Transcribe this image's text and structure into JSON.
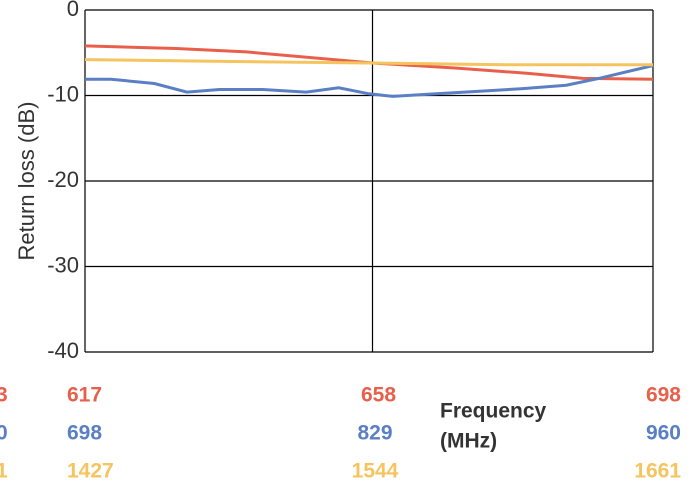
{
  "chart_data": {
    "type": "line",
    "ylabel": "Return loss (dB)",
    "xlabel": [
      "Frequency",
      "(MHz)"
    ],
    "ylim": [
      -40,
      0
    ],
    "yticks": [
      0,
      -10,
      -20,
      -30,
      -40
    ],
    "grid": true,
    "cut_labels": [
      "3",
      "0",
      "1"
    ],
    "x_axes": [
      {
        "color": "#e8604c",
        "xlim": [
          617,
          698
        ],
        "xticks": [
          617,
          658,
          698
        ]
      },
      {
        "color": "#5b7fc4",
        "xlim": [
          698,
          960
        ],
        "xticks": [
          698,
          829,
          960
        ]
      },
      {
        "color": "#f5c45e",
        "xlim": [
          1427,
          1661
        ],
        "xticks": [
          1427,
          1544,
          1661
        ]
      }
    ],
    "series": [
      {
        "color": "#e8604c",
        "axis": 0,
        "x": [
          617,
          630,
          640,
          658,
          670,
          680,
          688,
          698
        ],
        "values": [
          -4.2,
          -4.5,
          -4.9,
          -6.2,
          -6.8,
          -7.4,
          -8.0,
          -8.1
        ]
      },
      {
        "color": "#5b7fc4",
        "axis": 1,
        "x": [
          698,
          710,
          730,
          745,
          760,
          780,
          800,
          815,
          829,
          840,
          860,
          880,
          900,
          920,
          935,
          960
        ],
        "values": [
          -8.1,
          -8.1,
          -8.6,
          -9.6,
          -9.3,
          -9.3,
          -9.6,
          -9.1,
          -9.8,
          -10.1,
          -9.8,
          -9.5,
          -9.2,
          -8.8,
          -8.0,
          -6.5
        ]
      },
      {
        "color": "#f5c45e",
        "axis": 2,
        "x": [
          1427,
          1480,
          1544,
          1600,
          1661
        ],
        "values": [
          -5.8,
          -6.0,
          -6.2,
          -6.4,
          -6.4
        ]
      }
    ]
  }
}
